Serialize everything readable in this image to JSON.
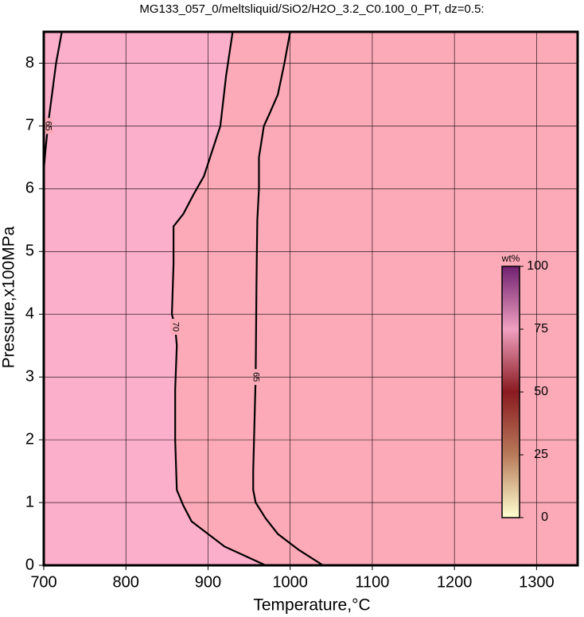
{
  "chart_data": {
    "type": "contour",
    "title": "MG133_057_0/meltsliquid/SiO2/H2O_3.2_C0.100_0_PT, dz=0.5:",
    "x_label": "Temperature,°C",
    "y_label": "Pressure,x100MPa",
    "xlim": [
      700,
      1350
    ],
    "ylim": [
      0,
      8.5
    ],
    "xticks": [
      700,
      800,
      900,
      1000,
      1100,
      1200,
      1300
    ],
    "yticks": [
      0,
      1,
      2,
      3,
      4,
      5,
      6,
      7,
      8
    ],
    "grid": true,
    "background_colors": [
      "#fbb0ce",
      "#fdaab8"
    ],
    "contours": [
      {
        "level": 70,
        "color": "#000000",
        "x": [
          930,
          922,
          915,
          905,
          895,
          882,
          870,
          858,
          858,
          856,
          860,
          862,
          860,
          860,
          862,
          870,
          880,
          900,
          920,
          945,
          970
        ],
        "y": [
          8.5,
          7.8,
          7.0,
          6.6,
          6.2,
          5.9,
          5.6,
          5.4,
          4.8,
          4.0,
          3.8,
          3.5,
          2.8,
          2.0,
          1.2,
          0.95,
          0.7,
          0.5,
          0.3,
          0.15,
          0
        ]
      },
      {
        "level": 65,
        "color": "#000000",
        "x": [
          1000,
          993,
          985,
          975,
          968,
          962,
          962,
          960,
          959,
          958,
          956,
          955,
          955,
          958,
          970,
          985,
          1010,
          1040
        ],
        "y": [
          8.5,
          8.0,
          7.5,
          7.2,
          7.0,
          6.5,
          6.0,
          5.5,
          4.5,
          3.0,
          2.0,
          1.5,
          1.2,
          1.0,
          0.75,
          0.5,
          0.25,
          0
        ]
      },
      {
        "level": 65,
        "color": "#000000",
        "x": [
          722,
          715,
          710,
          705,
          702,
          700
        ],
        "y": [
          8.5,
          8.0,
          7.5,
          7.0,
          6.6,
          6.3
        ]
      }
    ],
    "colorbar": {
      "label": "wt%",
      "lim": [
        0,
        100
      ],
      "ticks": [
        0,
        25,
        50,
        75,
        100
      ],
      "colors": [
        "#ffffd0",
        "#b87a5a",
        "#8a1a20",
        "#f0a0c0",
        "#702070"
      ]
    }
  }
}
